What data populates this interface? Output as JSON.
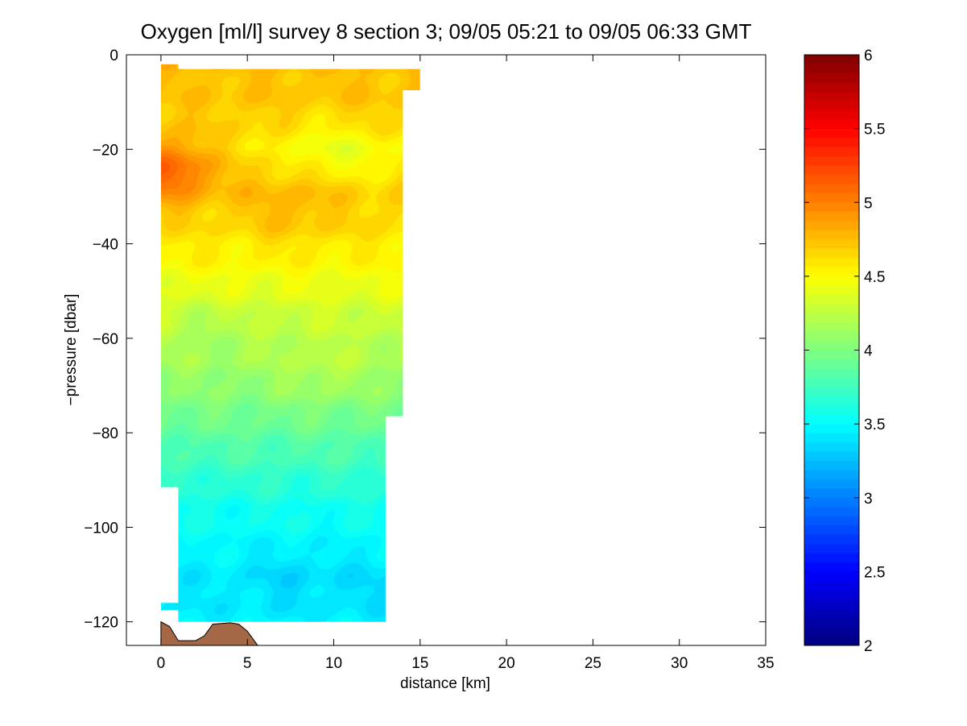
{
  "chart_data": {
    "type": "heatmap",
    "title": "Oxygen [ml/l] survey 8 section 3; 09/05 05:21 to 09/05 06:33 GMT",
    "xlabel": "distance [km]",
    "ylabel": "−pressure [dbar]",
    "xlim": [
      -2,
      35
    ],
    "ylim": [
      -125,
      0
    ],
    "x_ticks": [
      0,
      5,
      10,
      15,
      20,
      25,
      30,
      35
    ],
    "y_ticks": [
      0,
      -20,
      -40,
      -60,
      -80,
      -100,
      -120
    ],
    "x_tick_labels": [
      "0",
      "5",
      "10",
      "15",
      "20",
      "25",
      "30",
      "35"
    ],
    "y_tick_labels": [
      "0",
      "−20",
      "−40",
      "−60",
      "−80",
      "−100",
      "−120"
    ],
    "colorbar": {
      "range": [
        2,
        6
      ],
      "ticks": [
        2,
        2.5,
        3,
        3.5,
        4,
        4.5,
        5,
        5.5,
        6
      ],
      "tick_labels": [
        "2",
        "2.5",
        "3",
        "3.5",
        "4",
        "4.5",
        "5",
        "5.5",
        "6"
      ],
      "colormap": "jet"
    },
    "field": {
      "depth_profile": [
        {
          "depth": 2,
          "value": 4.75
        },
        {
          "depth": 10,
          "value": 4.72
        },
        {
          "depth": 20,
          "value": 4.62
        },
        {
          "depth": 28,
          "value": 4.72
        },
        {
          "depth": 35,
          "value": 4.65
        },
        {
          "depth": 45,
          "value": 4.5
        },
        {
          "depth": 55,
          "value": 4.3
        },
        {
          "depth": 65,
          "value": 4.15
        },
        {
          "depth": 75,
          "value": 3.98
        },
        {
          "depth": 85,
          "value": 3.78
        },
        {
          "depth": 95,
          "value": 3.58
        },
        {
          "depth": 105,
          "value": 3.48
        },
        {
          "depth": 112,
          "value": 3.42
        },
        {
          "depth": 120,
          "value": 3.45
        }
      ],
      "anomalies": [
        {
          "x": 0.5,
          "depth": 24,
          "value": 0.45
        },
        {
          "x": 9.0,
          "depth": 20,
          "value": -0.18
        },
        {
          "x": 12.5,
          "depth": 22,
          "value": -0.15
        },
        {
          "x": 7.5,
          "depth": 33,
          "value": 0.12
        },
        {
          "x": 3.0,
          "depth": 58,
          "value": -0.08
        },
        {
          "x": 9.5,
          "depth": 68,
          "value": 0.1
        },
        {
          "x": 7.5,
          "depth": 110,
          "value": -0.08
        },
        {
          "x": 12.5,
          "depth": 112,
          "value": -0.06
        }
      ],
      "data_outline": [
        [
          0,
          -2
        ],
        [
          1,
          -2
        ],
        [
          1,
          -3
        ],
        [
          15,
          -3
        ],
        [
          15,
          -7.5
        ],
        [
          14,
          -7.5
        ],
        [
          14,
          -76.5
        ],
        [
          13,
          -76.5
        ],
        [
          13,
          -120
        ],
        [
          1,
          -120
        ],
        [
          1,
          -117.5
        ],
        [
          0,
          -117.5
        ],
        [
          0,
          -116
        ],
        [
          1,
          -116
        ],
        [
          1,
          -91.5
        ],
        [
          0,
          -91.5
        ]
      ],
      "seafloor": [
        [
          0,
          -120
        ],
        [
          0.5,
          -121
        ],
        [
          1,
          -124
        ],
        [
          1.5,
          -124
        ],
        [
          2,
          -124
        ],
        [
          2.5,
          -123
        ],
        [
          3,
          -120.5
        ],
        [
          4,
          -120.2
        ],
        [
          4.5,
          -120.5
        ],
        [
          5,
          -122
        ],
        [
          5.5,
          -124.5
        ],
        [
          5.6,
          -125
        ]
      ],
      "seafloor_color": "#a56847"
    }
  }
}
